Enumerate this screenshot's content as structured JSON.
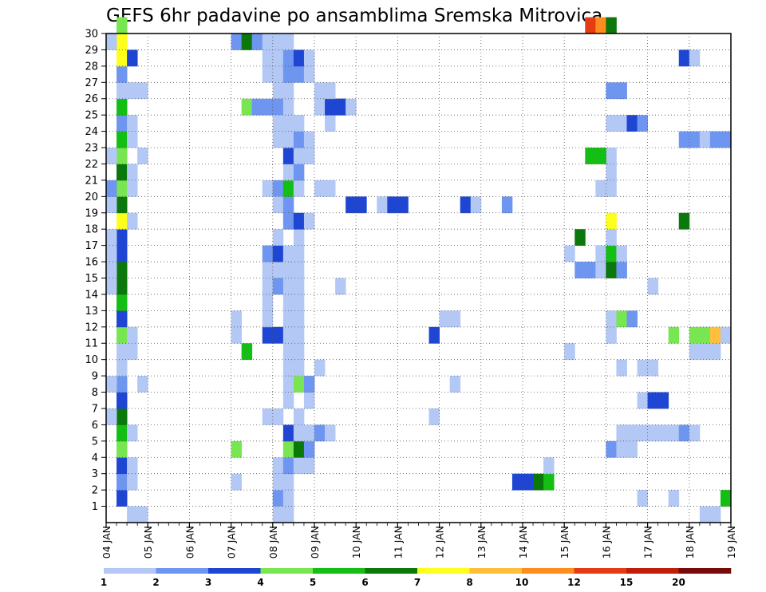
{
  "chart_data": {
    "type": "heatmap",
    "title": "GEFS 6hr padavine po ansamblima Sremska Mitrovica",
    "xlabel": "",
    "ylabel": "",
    "x_ticks": [
      "04 JAN",
      "05 JAN",
      "06 JAN",
      "07 JAN",
      "08 JAN",
      "09 JAN",
      "10 JAN",
      "11 JAN",
      "12 JAN",
      "13 JAN",
      "14 JAN",
      "15 JAN",
      "16 JAN",
      "17 JAN",
      "18 JAN",
      "19 JAN"
    ],
    "xlim": [
      0,
      60
    ],
    "y_ticks": [
      "1",
      "2",
      "3",
      "4",
      "5",
      "6",
      "7",
      "8",
      "9",
      "10",
      "11",
      "12",
      "13",
      "14",
      "15",
      "16",
      "17",
      "18",
      "19",
      "20",
      "21",
      "22",
      "23",
      "24",
      "25",
      "26",
      "27",
      "28",
      "29",
      "30"
    ],
    "ylim": [
      0,
      30
    ],
    "grid": true,
    "levels": [
      "1",
      "2",
      "3",
      "4",
      "5",
      "6",
      "7",
      "8",
      "10",
      "12",
      "15",
      "20"
    ],
    "colors": [
      "#b4c8f5",
      "#6e96f0",
      "#1e46d2",
      "#78e650",
      "#14be14",
      "#0a780a",
      "#ffff1e",
      "#ffbe3c",
      "#ff8c1e",
      "#e63c14",
      "#be1e0a",
      "#780a0a"
    ],
    "cells": [
      [
        1,
        1,
        3
      ],
      [
        1,
        2,
        2
      ],
      [
        1,
        3,
        3
      ],
      [
        1,
        4,
        4
      ],
      [
        1,
        5,
        5
      ],
      [
        1,
        6,
        6
      ],
      [
        1,
        7,
        3
      ],
      [
        1,
        8,
        2
      ],
      [
        1,
        9,
        1
      ],
      [
        1,
        10,
        1
      ],
      [
        1,
        11,
        4
      ],
      [
        1,
        12,
        3
      ],
      [
        1,
        13,
        5
      ],
      [
        1,
        14,
        6
      ],
      [
        1,
        15,
        6
      ],
      [
        1,
        16,
        3
      ],
      [
        1,
        17,
        3
      ],
      [
        1,
        18,
        7
      ],
      [
        1,
        19,
        6
      ],
      [
        1,
        20,
        4
      ],
      [
        1,
        21,
        6
      ],
      [
        1,
        22,
        4
      ],
      [
        1,
        23,
        5
      ],
      [
        1,
        24,
        2
      ],
      [
        1,
        25,
        5
      ],
      [
        1,
        26,
        1
      ],
      [
        1,
        27,
        2
      ],
      [
        1,
        28,
        7
      ],
      [
        1,
        29,
        7
      ],
      [
        1,
        30,
        4
      ],
      [
        0,
        6,
        1
      ],
      [
        0,
        8,
        1
      ],
      [
        0,
        14,
        1
      ],
      [
        0,
        15,
        1
      ],
      [
        0,
        16,
        1
      ],
      [
        0,
        17,
        1
      ],
      [
        0,
        19,
        1
      ],
      [
        0,
        20,
        2
      ],
      [
        0,
        22,
        1
      ],
      [
        0,
        29,
        1
      ],
      [
        2,
        0,
        1
      ],
      [
        2,
        2,
        1
      ],
      [
        2,
        3,
        1
      ],
      [
        2,
        5,
        1
      ],
      [
        2,
        10,
        1
      ],
      [
        2,
        11,
        1
      ],
      [
        2,
        18,
        1
      ],
      [
        2,
        20,
        1
      ],
      [
        2,
        21,
        1
      ],
      [
        2,
        23,
        1
      ],
      [
        2,
        24,
        1
      ],
      [
        2,
        26,
        1
      ],
      [
        2,
        28,
        3
      ],
      [
        3,
        0,
        1
      ],
      [
        3,
        8,
        1
      ],
      [
        3,
        22,
        1
      ],
      [
        3,
        26,
        1
      ],
      [
        12,
        2,
        1
      ],
      [
        12,
        4,
        4
      ],
      [
        12,
        11,
        1
      ],
      [
        12,
        12,
        1
      ],
      [
        12,
        29,
        2
      ],
      [
        13,
        10,
        5
      ],
      [
        13,
        29,
        6
      ],
      [
        13,
        25,
        4
      ],
      [
        14,
        25,
        2
      ],
      [
        14,
        29,
        2
      ],
      [
        15,
        25,
        2
      ],
      [
        15,
        29,
        1
      ],
      [
        15,
        6,
        1
      ],
      [
        16,
        6,
        1
      ],
      [
        15,
        13,
        1
      ],
      [
        15,
        15,
        1
      ],
      [
        16,
        15,
        1
      ],
      [
        15,
        16,
        2
      ],
      [
        15,
        20,
        1
      ],
      [
        16,
        20,
        2
      ],
      [
        15,
        27,
        1
      ],
      [
        16,
        27,
        1
      ],
      [
        15,
        28,
        1
      ],
      [
        16,
        28,
        1
      ],
      [
        16,
        26,
        1
      ],
      [
        16,
        25,
        2
      ],
      [
        16,
        24,
        1
      ],
      [
        16,
        23,
        1
      ],
      [
        15,
        11,
        3
      ],
      [
        16,
        11,
        3
      ],
      [
        15,
        12,
        1
      ],
      [
        15,
        14,
        1
      ],
      [
        16,
        14,
        2
      ],
      [
        16,
        16,
        3
      ],
      [
        16,
        17,
        1
      ],
      [
        16,
        19,
        1
      ],
      [
        16,
        1,
        2
      ],
      [
        16,
        2,
        1
      ],
      [
        16,
        3,
        1
      ],
      [
        16,
        29,
        1
      ],
      [
        17,
        2,
        1
      ],
      [
        17,
        0,
        1
      ],
      [
        16,
        0,
        1
      ],
      [
        17,
        1,
        1
      ],
      [
        17,
        3,
        2
      ],
      [
        17,
        4,
        4
      ],
      [
        17,
        5,
        3
      ],
      [
        17,
        7,
        1
      ],
      [
        17,
        8,
        1
      ],
      [
        17,
        9,
        1
      ],
      [
        17,
        10,
        1
      ],
      [
        17,
        11,
        1
      ],
      [
        17,
        12,
        1
      ],
      [
        17,
        13,
        1
      ],
      [
        17,
        14,
        1
      ],
      [
        17,
        15,
        1
      ],
      [
        17,
        16,
        1
      ],
      [
        17,
        18,
        2
      ],
      [
        17,
        19,
        2
      ],
      [
        17,
        20,
        5
      ],
      [
        17,
        21,
        1
      ],
      [
        17,
        22,
        3
      ],
      [
        17,
        23,
        1
      ],
      [
        17,
        24,
        1
      ],
      [
        17,
        25,
        1
      ],
      [
        17,
        26,
        1
      ],
      [
        17,
        27,
        2
      ],
      [
        17,
        28,
        2
      ],
      [
        17,
        29,
        1
      ],
      [
        18,
        3,
        1
      ],
      [
        18,
        4,
        6
      ],
      [
        18,
        5,
        1
      ],
      [
        18,
        6,
        1
      ],
      [
        18,
        8,
        4
      ],
      [
        18,
        9,
        1
      ],
      [
        18,
        10,
        1
      ],
      [
        18,
        11,
        1
      ],
      [
        18,
        12,
        1
      ],
      [
        18,
        13,
        1
      ],
      [
        18,
        14,
        1
      ],
      [
        18,
        15,
        1
      ],
      [
        18,
        16,
        1
      ],
      [
        18,
        17,
        1
      ],
      [
        18,
        18,
        3
      ],
      [
        18,
        20,
        1
      ],
      [
        18,
        21,
        2
      ],
      [
        18,
        22,
        1
      ],
      [
        18,
        23,
        2
      ],
      [
        18,
        24,
        1
      ],
      [
        18,
        27,
        2
      ],
      [
        18,
        28,
        3
      ],
      [
        19,
        3,
        1
      ],
      [
        19,
        4,
        2
      ],
      [
        19,
        5,
        1
      ],
      [
        19,
        7,
        1
      ],
      [
        19,
        8,
        2
      ],
      [
        19,
        18,
        1
      ],
      [
        19,
        22,
        1
      ],
      [
        19,
        23,
        1
      ],
      [
        19,
        27,
        1
      ],
      [
        19,
        28,
        1
      ],
      [
        20,
        5,
        2
      ],
      [
        20,
        9,
        1
      ],
      [
        20,
        20,
        1
      ],
      [
        20,
        25,
        1
      ],
      [
        20,
        26,
        1
      ],
      [
        21,
        5,
        1
      ],
      [
        21,
        20,
        1
      ],
      [
        21,
        24,
        1
      ],
      [
        21,
        25,
        3
      ],
      [
        21,
        26,
        1
      ],
      [
        22,
        25,
        3
      ],
      [
        22,
        14,
        1
      ],
      [
        22,
        25,
        3
      ],
      [
        23,
        25,
        1
      ],
      [
        23,
        19,
        3
      ],
      [
        24,
        19,
        3
      ],
      [
        26,
        19,
        1
      ],
      [
        27,
        19,
        3
      ],
      [
        28,
        19,
        3
      ],
      [
        31,
        11,
        3
      ],
      [
        31,
        6,
        1
      ],
      [
        32,
        12,
        1
      ],
      [
        33,
        12,
        1
      ],
      [
        33,
        8,
        1
      ],
      [
        34,
        19,
        3
      ],
      [
        35,
        19,
        1
      ],
      [
        38,
        19,
        2
      ],
      [
        39,
        2,
        3
      ],
      [
        40,
        2,
        3
      ],
      [
        41,
        2,
        6
      ],
      [
        42,
        2,
        5
      ],
      [
        42,
        3,
        1
      ],
      [
        44,
        10,
        1
      ],
      [
        44,
        16,
        1
      ],
      [
        45,
        17,
        6
      ],
      [
        45,
        15,
        2
      ],
      [
        46,
        15,
        2
      ],
      [
        47,
        15,
        1
      ],
      [
        47,
        16,
        1
      ],
      [
        47,
        20,
        1
      ],
      [
        48,
        15,
        6
      ],
      [
        48,
        16,
        5
      ],
      [
        48,
        17,
        1
      ],
      [
        48,
        18,
        7
      ],
      [
        48,
        20,
        1
      ],
      [
        48,
        21,
        1
      ],
      [
        48,
        22,
        1
      ],
      [
        48,
        24,
        1
      ],
      [
        48,
        26,
        2
      ],
      [
        48,
        12,
        1
      ],
      [
        48,
        11,
        1
      ],
      [
        48,
        4,
        2
      ],
      [
        46,
        22,
        5
      ],
      [
        47,
        22,
        5
      ],
      [
        46,
        30,
        10
      ],
      [
        47,
        30,
        9
      ],
      [
        48,
        30,
        6
      ],
      [
        49,
        26,
        2
      ],
      [
        49,
        15,
        2
      ],
      [
        49,
        16,
        1
      ],
      [
        49,
        12,
        4
      ],
      [
        49,
        24,
        1
      ],
      [
        49,
        9,
        1
      ],
      [
        49,
        4,
        1
      ],
      [
        49,
        5,
        1
      ],
      [
        50,
        24,
        3
      ],
      [
        50,
        12,
        2
      ],
      [
        50,
        5,
        1
      ],
      [
        50,
        4,
        1
      ],
      [
        51,
        24,
        2
      ],
      [
        51,
        9,
        1
      ],
      [
        51,
        5,
        1
      ],
      [
        51,
        7,
        1
      ],
      [
        52,
        9,
        1
      ],
      [
        52,
        5,
        1
      ],
      [
        52,
        7,
        3
      ],
      [
        53,
        7,
        3
      ],
      [
        52,
        14,
        1
      ],
      [
        53,
        5,
        1
      ],
      [
        51,
        1,
        1
      ],
      [
        54,
        1,
        1
      ],
      [
        54,
        5,
        1
      ],
      [
        54,
        11,
        4
      ],
      [
        55,
        5,
        2
      ],
      [
        55,
        23,
        2
      ],
      [
        56,
        23,
        2
      ],
      [
        55,
        18,
        6
      ],
      [
        55,
        28,
        3
      ],
      [
        56,
        28,
        1
      ],
      [
        56,
        11,
        4
      ],
      [
        56,
        10,
        1
      ],
      [
        57,
        10,
        1
      ],
      [
        58,
        10,
        1
      ],
      [
        56,
        5,
        1
      ],
      [
        57,
        11,
        4
      ],
      [
        58,
        11,
        8
      ],
      [
        59,
        11,
        1
      ],
      [
        57,
        23,
        1
      ],
      [
        58,
        23,
        2
      ],
      [
        59,
        23,
        2
      ],
      [
        57,
        0,
        1
      ],
      [
        58,
        0,
        1
      ],
      [
        59,
        1,
        5
      ]
    ]
  }
}
